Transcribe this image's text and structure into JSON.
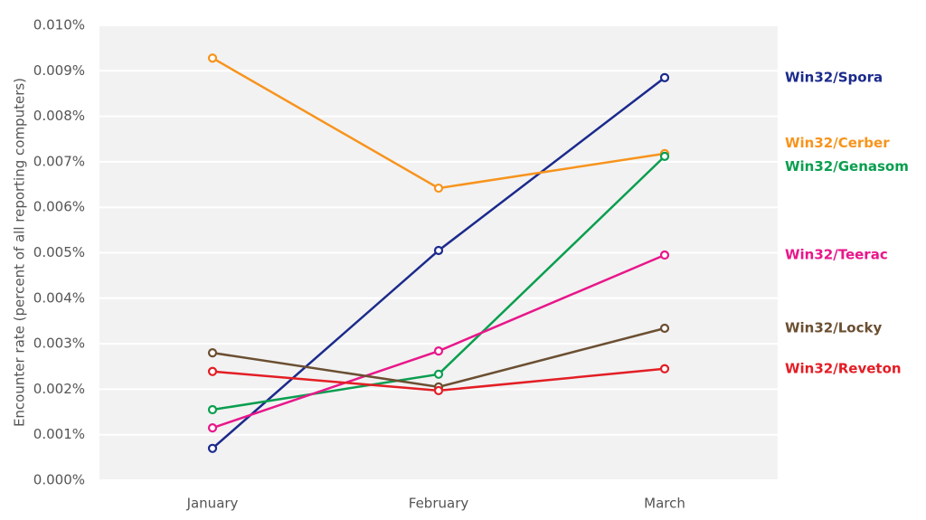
{
  "chart_data": {
    "type": "line",
    "y_label": "Encounter rate (percent of all reporting computers)",
    "categories": [
      "January",
      "February",
      "March"
    ],
    "ylim": [
      0,
      0.01
    ],
    "yticks": [
      {
        "value": 0,
        "label": "0.000%"
      },
      {
        "value": 0.001,
        "label": "0.001%"
      },
      {
        "value": 0.002,
        "label": "0.002%"
      },
      {
        "value": 0.003,
        "label": "0.003%"
      },
      {
        "value": 0.004,
        "label": "0.004%"
      },
      {
        "value": 0.005,
        "label": "0.005%"
      },
      {
        "value": 0.006,
        "label": "0.006%"
      },
      {
        "value": 0.007,
        "label": "0.007%"
      },
      {
        "value": 0.008,
        "label": "0.008%"
      },
      {
        "value": 0.009,
        "label": "0.009%"
      },
      {
        "value": 0.01,
        "label": "0.010%"
      }
    ],
    "grid": true,
    "series": [
      {
        "name": "Win32/Spora",
        "color": "#1b2a8c",
        "values": [
          0.0007,
          0.00505,
          0.00885
        ]
      },
      {
        "name": "Win32/Cerber",
        "color": "#f7941d",
        "values": [
          0.00928,
          0.00642,
          0.00718
        ]
      },
      {
        "name": "Win32/Genasom",
        "color": "#0a9e4f",
        "values": [
          0.00155,
          0.00233,
          0.00712
        ]
      },
      {
        "name": "Win32/Teerac",
        "color": "#e8178a",
        "values": [
          0.00115,
          0.00284,
          0.00495
        ]
      },
      {
        "name": "Win32/Locky",
        "color": "#6b4f32",
        "values": [
          0.0028,
          0.00205,
          0.00334
        ]
      },
      {
        "name": "Win32/Reveton",
        "color": "#e31e25",
        "values": [
          0.00239,
          0.00197,
          0.00245
        ]
      }
    ]
  }
}
